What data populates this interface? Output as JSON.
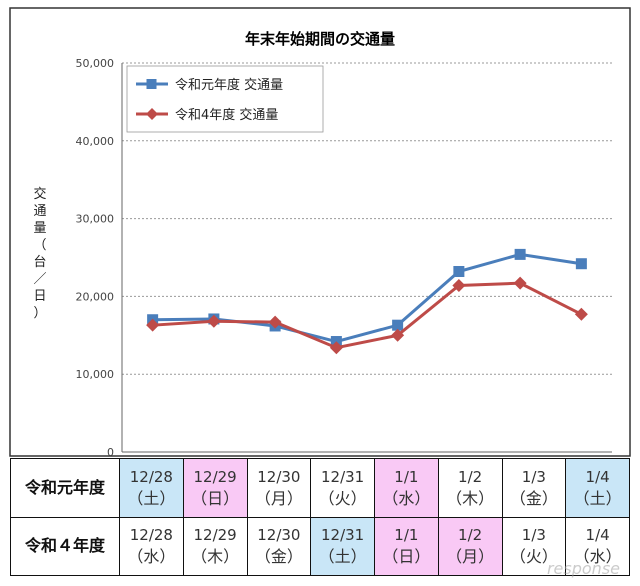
{
  "chart_data": {
    "type": "line",
    "title": "年末年始期間の交通量",
    "ylabel": "交通量（台／日）",
    "ylim": [
      0,
      50000
    ],
    "yticks": [
      "0",
      "10,000",
      "20,000",
      "30,000",
      "40,000",
      "50,000"
    ],
    "grid": true,
    "legend_position": "top-left",
    "series": [
      {
        "name": "令和元年度 交通量",
        "color": "#4a7ebb",
        "marker": "square",
        "values": [
          17000,
          17100,
          16200,
          14200,
          16300,
          23200,
          25400,
          24200
        ]
      },
      {
        "name": "令和4年度 交通量",
        "color": "#be4b48",
        "marker": "diamond",
        "values": [
          16300,
          16800,
          16700,
          13400,
          15000,
          21400,
          21700,
          17700
        ]
      }
    ]
  },
  "table": {
    "rows": [
      {
        "label": "令和元年度",
        "cells": [
          {
            "date": "12/28",
            "day": "（土）",
            "type": "sat"
          },
          {
            "date": "12/29",
            "day": "（日）",
            "type": "hol"
          },
          {
            "date": "12/30",
            "day": "（月）",
            "type": ""
          },
          {
            "date": "12/31",
            "day": "（火）",
            "type": ""
          },
          {
            "date": "1/1",
            "day": "（水）",
            "type": "hol"
          },
          {
            "date": "1/2",
            "day": "（木）",
            "type": ""
          },
          {
            "date": "1/3",
            "day": "（金）",
            "type": ""
          },
          {
            "date": "1/4",
            "day": "（土）",
            "type": "sat"
          }
        ]
      },
      {
        "label": "令和４年度",
        "cells": [
          {
            "date": "12/28",
            "day": "（水）",
            "type": ""
          },
          {
            "date": "12/29",
            "day": "（木）",
            "type": ""
          },
          {
            "date": "12/30",
            "day": "（金）",
            "type": ""
          },
          {
            "date": "12/31",
            "day": "（土）",
            "type": "sat"
          },
          {
            "date": "1/1",
            "day": "（日）",
            "type": "hol"
          },
          {
            "date": "1/2",
            "day": "（月）",
            "type": "hol"
          },
          {
            "date": "1/3",
            "day": "（火）",
            "type": ""
          },
          {
            "date": "1/4",
            "day": "（水）",
            "type": ""
          }
        ]
      }
    ]
  },
  "watermark": "response"
}
